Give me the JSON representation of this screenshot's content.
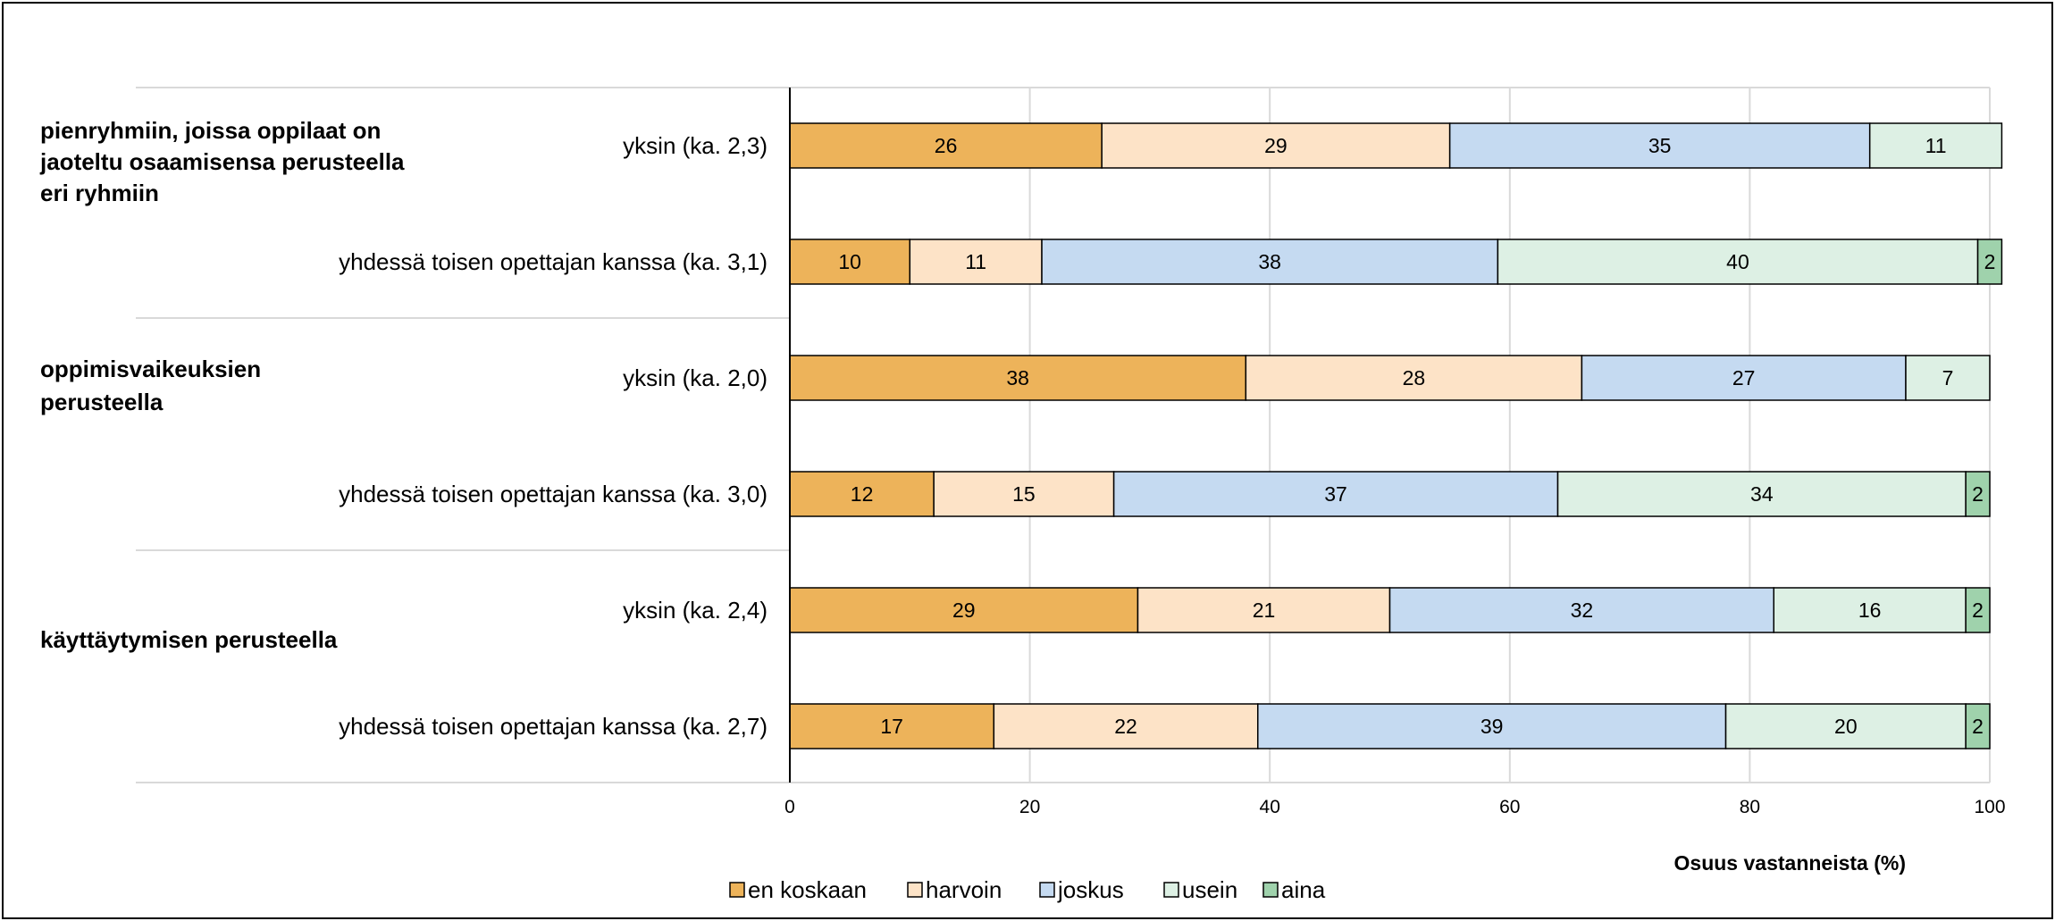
{
  "chart_data": {
    "type": "bar",
    "orientation": "horizontal",
    "stacked": true,
    "title": "",
    "xlabel": "Osuus vastanneista (%)",
    "ylabel": "",
    "xlim": [
      0,
      100
    ],
    "xticks": [
      "0",
      "20",
      "40",
      "60",
      "80",
      "100"
    ],
    "grid": true,
    "legend_position": "bottom",
    "groups": [
      {
        "label": "pienryhmiin, joissa oppilaat on jaoteltu osaamisensa perusteella eri ryhmiin",
        "label_lines": [
          "pienryhmiin, joissa oppilaat on",
          "jaoteltu osaamisensa perusteella",
          "eri ryhmiin"
        ]
      },
      {
        "label": "oppimisvaikeuksien perusteella",
        "label_lines": [
          "oppimisvaikeuksien",
          "perusteella"
        ]
      },
      {
        "label": "käyttäytymisen perusteella",
        "label_lines": [
          "käyttäytymisen perusteella"
        ]
      }
    ],
    "categories": [
      "yksin (ka. 2,3)",
      "yhdessä toisen opettajan kanssa (ka. 3,1)",
      "yksin (ka. 2,0)",
      "yhdessä toisen opettajan kanssa (ka. 3,0)",
      "yksin (ka. 2,4)",
      "yhdessä toisen opettajan kanssa (ka. 2,7)"
    ],
    "series": [
      {
        "name": "en koskaan",
        "color": "#edb35a",
        "values": [
          26,
          10,
          38,
          12,
          29,
          17
        ]
      },
      {
        "name": "harvoin",
        "color": "#fde3c7",
        "values": [
          29,
          11,
          28,
          15,
          21,
          22
        ]
      },
      {
        "name": "joskus",
        "color": "#c5daf1",
        "values": [
          35,
          38,
          27,
          37,
          32,
          39
        ]
      },
      {
        "name": "usein",
        "color": "#ddf0e4",
        "values": [
          11,
          40,
          7,
          34,
          16,
          20
        ]
      },
      {
        "name": "aina",
        "color": "#9fd2ac",
        "values": [
          0,
          2,
          0,
          2,
          2,
          2
        ]
      }
    ]
  }
}
